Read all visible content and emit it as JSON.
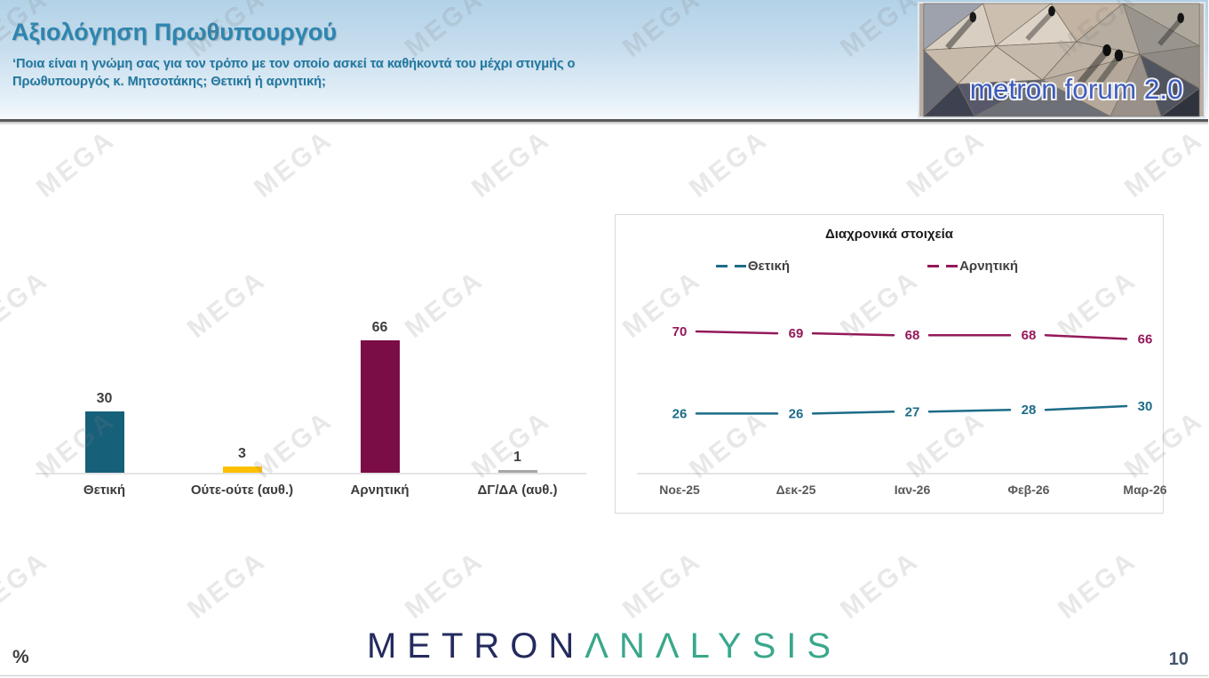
{
  "header": {
    "title": "Αξιολόγηση Πρωθυπουργού",
    "subtitle": [
      "‘Ποια είναι η γνώμη σας για τον τρόπο με τον οποίο ασκεί τα καθήκοντά του μέχρι στιγμής ο",
      "Πρωθυπουργός κ. Μητσοτάκης; Θετική ή αρνητική;"
    ],
    "logo_text": "metron forum 2.0"
  },
  "watermark": {
    "text": "MEGA"
  },
  "footer": {
    "unit_label": "%",
    "page_number": "10",
    "brand": {
      "part1": "METRON",
      "part2": "ΛNΛLYSIS"
    }
  },
  "colors": {
    "accent_title": "#2C86AF",
    "positive": "#17607A",
    "neutral": "#FFC000",
    "negative": "#7B0D46",
    "dk_da": "#A6A6A6",
    "positive_line": "#1D6C88",
    "negative_line": "#94195A",
    "axis_gray": "#DCDCDC",
    "tick_label_gray": "#595959"
  },
  "chart_data": [
    {
      "type": "bar",
      "title": "",
      "categories": [
        "Θετική",
        "Ούτε-ούτε (αυθ.)",
        "Αρνητική",
        "ΔΓ/ΔΑ (αυθ.)"
      ],
      "values": [
        30,
        3,
        66,
        1
      ],
      "bar_colors": [
        "#17607A",
        "#FFC000",
        "#7B0D46",
        "#A6A6A6"
      ],
      "data_labels": true,
      "grid": false,
      "ylim": [
        0,
        70
      ],
      "xlabel": "",
      "ylabel": ""
    },
    {
      "type": "line",
      "title": "Διαχρονικά στοιχεία",
      "categories": [
        "Νοε-25",
        "Δεκ-25",
        "Ιαν-26",
        "Φεβ-26",
        "Μαρ-26"
      ],
      "series": [
        {
          "name": "Θετική",
          "values": [
            26,
            26,
            27,
            28,
            30
          ],
          "color": "#1D6C88"
        },
        {
          "name": "Αρνητική",
          "values": [
            70,
            69,
            68,
            68,
            66
          ],
          "color": "#94195A"
        }
      ],
      "legend_position": "top",
      "data_labels": true,
      "grid": false,
      "ylim": [
        0,
        80
      ],
      "xlabel": "",
      "ylabel": ""
    }
  ]
}
